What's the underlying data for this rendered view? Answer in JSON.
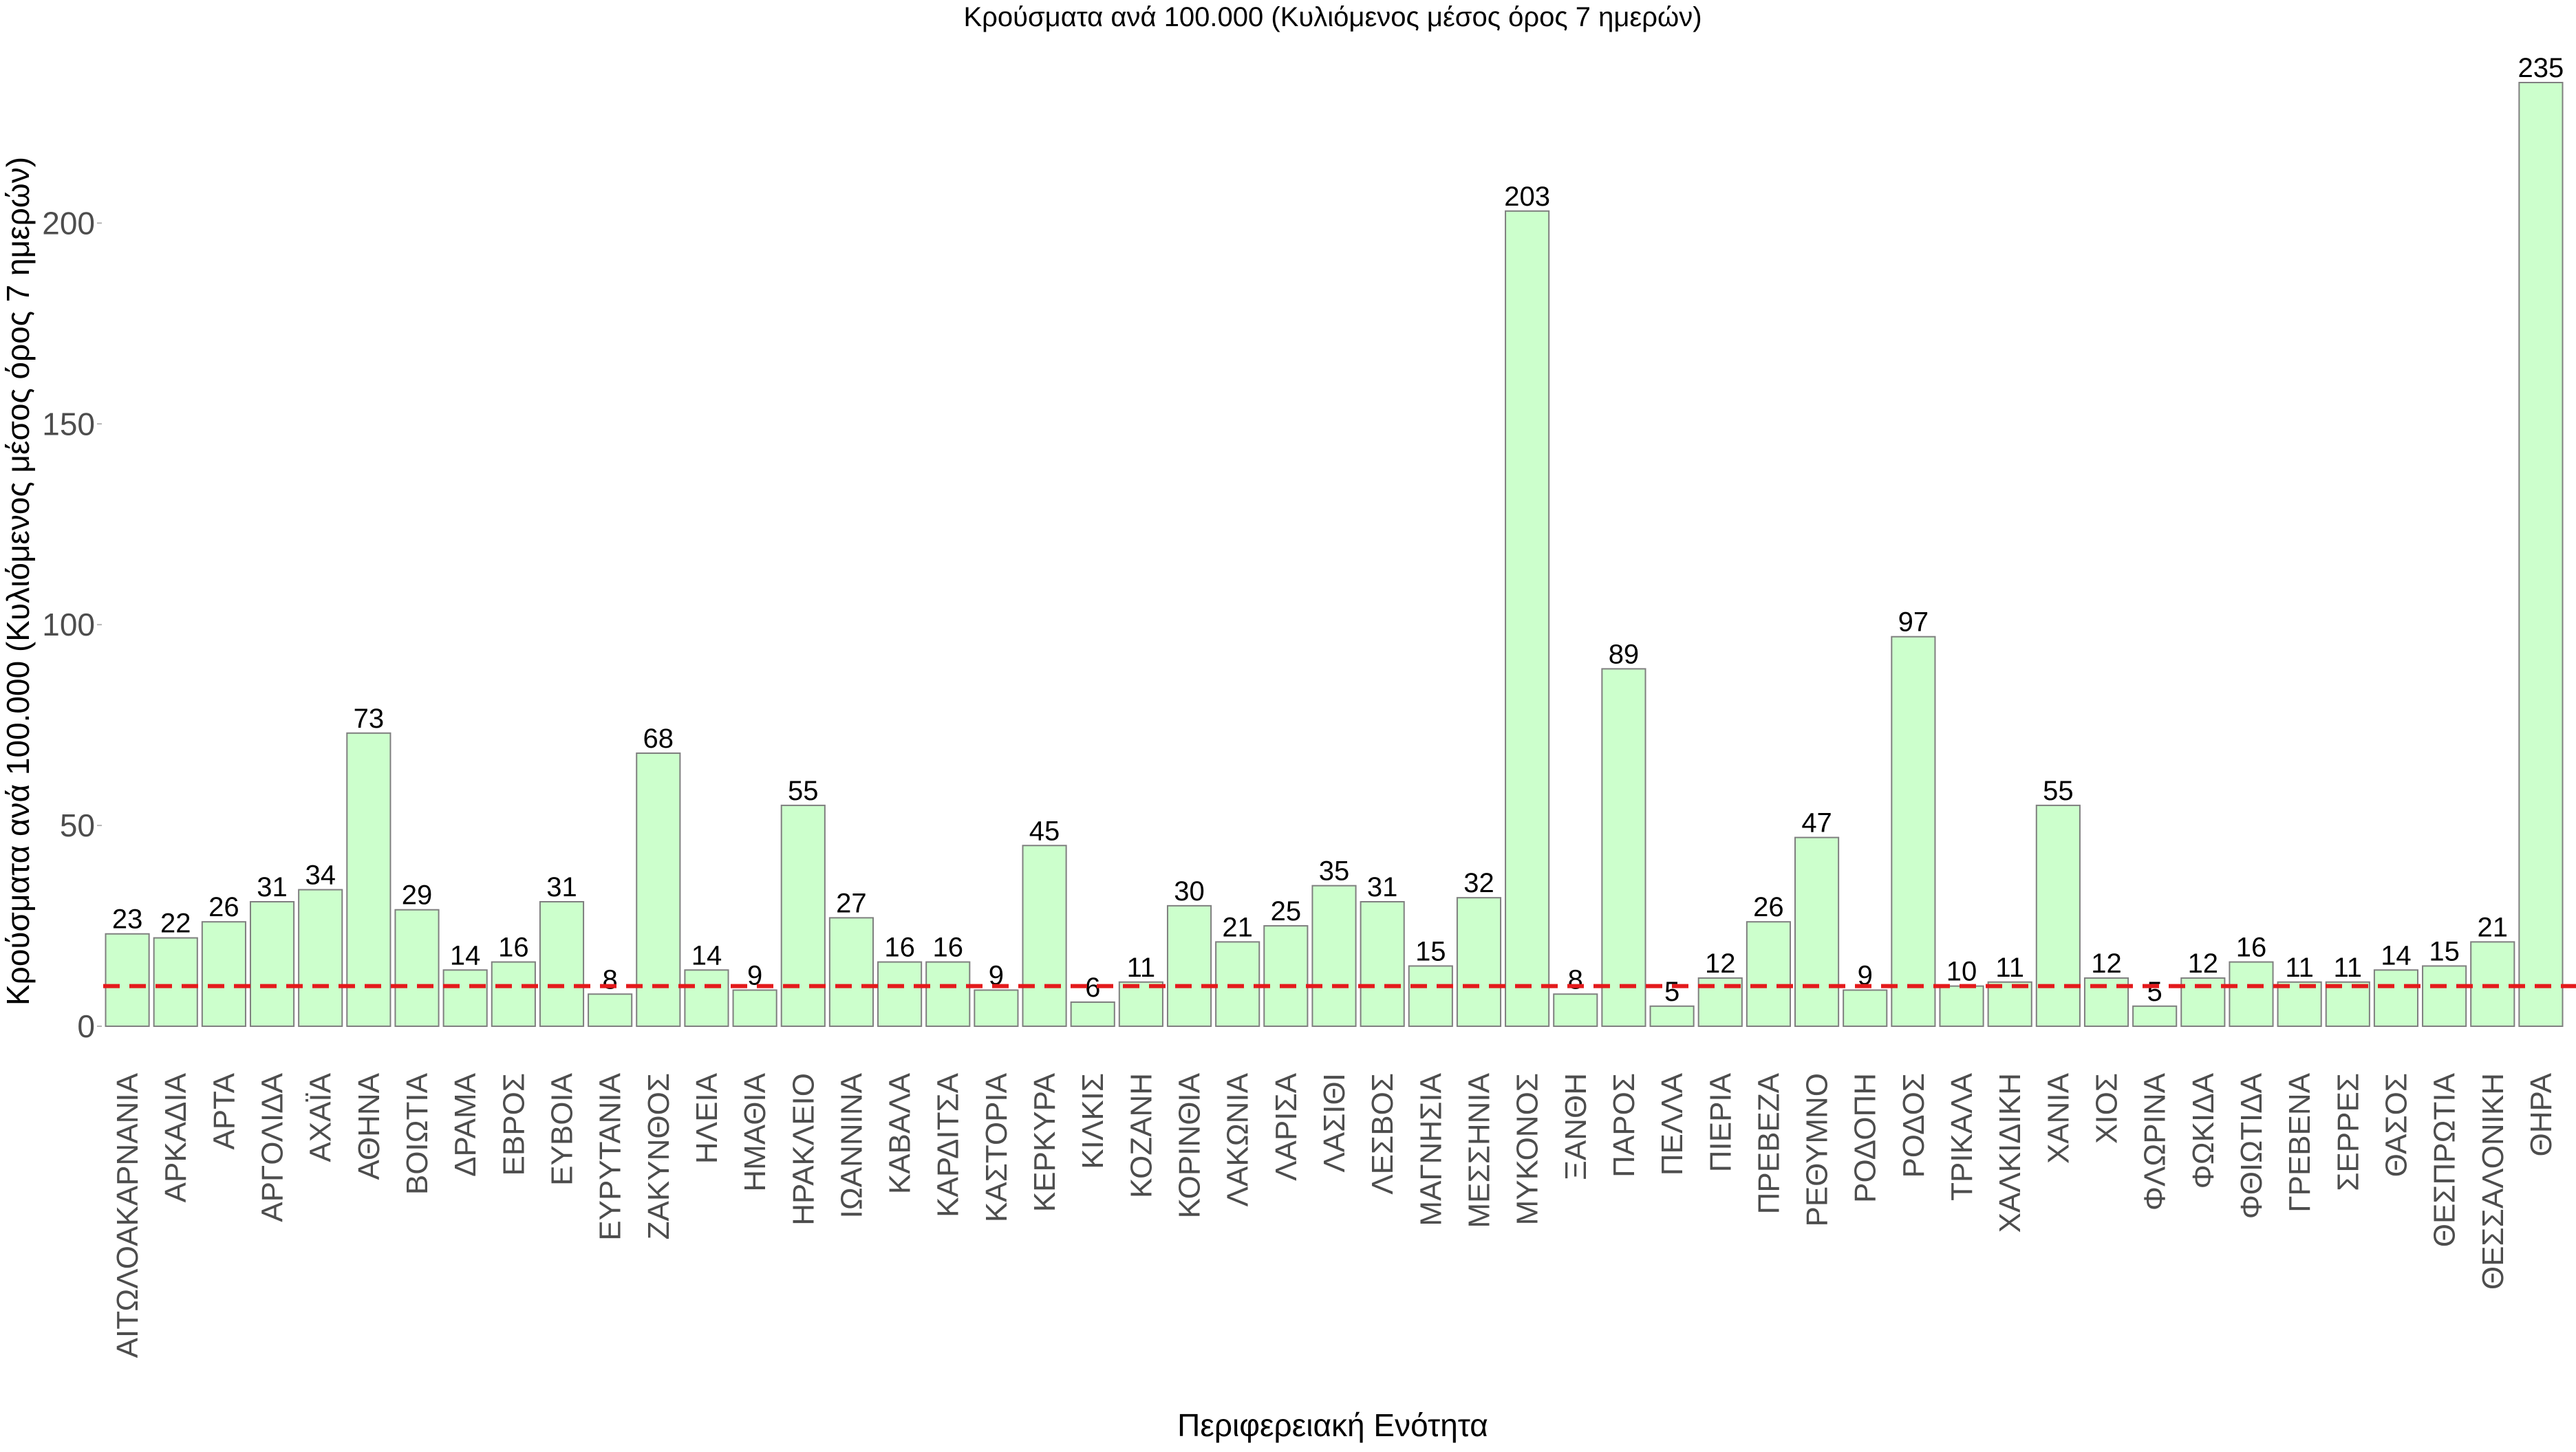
{
  "chart_data": {
    "type": "bar",
    "title": "Κρούσματα ανά 100.000 (Κυλιόμενος μέσος όρος 7 ημερών)",
    "xlabel": "Περιφερειακή Ενότητα",
    "ylabel": "Κρούσματα ανά 100.000 (Κυλιόμενος μέσος όρος 7 ημερών)",
    "ylim": [
      0,
      235
    ],
    "yticks": [
      0,
      50,
      100,
      150,
      200
    ],
    "threshold": 10,
    "grid": false,
    "categories": [
      "ΑΙΤΩΛΟΑΚΑΡΝΑΝΙΑ",
      "ΑΡΚΑΔΙΑ",
      "ΑΡΤΑ",
      "ΑΡΓΟΛΙΔΑ",
      "ΑΧΑΪΑ",
      "ΑΘΗΝΑ",
      "ΒΟΙΩΤΙΑ",
      "ΔΡΑΜΑ",
      "ΕΒΡΟΣ",
      "ΕΥΒΟΙΑ",
      "ΕΥΡΥΤΑΝΙΑ",
      "ΖΑΚΥΝΘΟΣ",
      "ΗΛΕΙΑ",
      "ΗΜΑΘΙΑ",
      "ΗΡΑΚΛΕΙΟ",
      "ΙΩΑΝΝΙΝΑ",
      "ΚΑΒΑΛΑ",
      "ΚΑΡΔΙΤΣΑ",
      "ΚΑΣΤΟΡΙΑ",
      "ΚΕΡΚΥΡΑ",
      "ΚΙΛΚΙΣ",
      "ΚΟΖΑΝΗ",
      "ΚΟΡΙΝΘΙΑ",
      "ΛΑΚΩΝΙΑ",
      "ΛΑΡΙΣΑ",
      "ΛΑΣΙΘΙ",
      "ΛΕΣΒΟΣ",
      "ΜΑΓΝΗΣΙΑ",
      "ΜΕΣΣΗΝΙΑ",
      "ΜΥΚΟΝΟΣ",
      "ΞΑΝΘΗ",
      "ΠΑΡΟΣ",
      "ΠΕΛΛΑ",
      "ΠΙΕΡΙΑ",
      "ΠΡΕΒΕΖΑ",
      "ΡΕΘΥΜΝΟ",
      "ΡΟΔΟΠΗ",
      "ΡΟΔΟΣ",
      "ΤΡΙΚΑΛΑ",
      "ΧΑΛΚΙΔΙΚΗ",
      "ΧΑΝΙΑ",
      "ΧΙΟΣ",
      "ΦΛΩΡΙΝΑ",
      "ΦΩΚΙΔΑ",
      "ΦΘΙΩΤΙΔΑ",
      "ΓΡΕΒΕΝΑ",
      "ΣΕΡΡΕΣ",
      "ΘΑΣΟΣ",
      "ΘΕΣΠΡΩΤΙΑ",
      "ΘΕΣΣΑΛΟΝΙΚΗ",
      "ΘΗΡΑ"
    ],
    "values": [
      23,
      22,
      26,
      31,
      34,
      73,
      29,
      14,
      16,
      31,
      8,
      68,
      14,
      9,
      55,
      27,
      16,
      16,
      9,
      45,
      6,
      11,
      30,
      21,
      25,
      35,
      31,
      15,
      32,
      203,
      8,
      89,
      5,
      12,
      26,
      47,
      9,
      97,
      10,
      11,
      55,
      12,
      5,
      12,
      16,
      11,
      11,
      14,
      15,
      21,
      235
    ],
    "colors": {
      "bar_fill": "#ccffcc",
      "bar_stroke": "#7f7f7f",
      "threshold": "#e41a1c",
      "tick_text": "#4d4d4d"
    }
  }
}
